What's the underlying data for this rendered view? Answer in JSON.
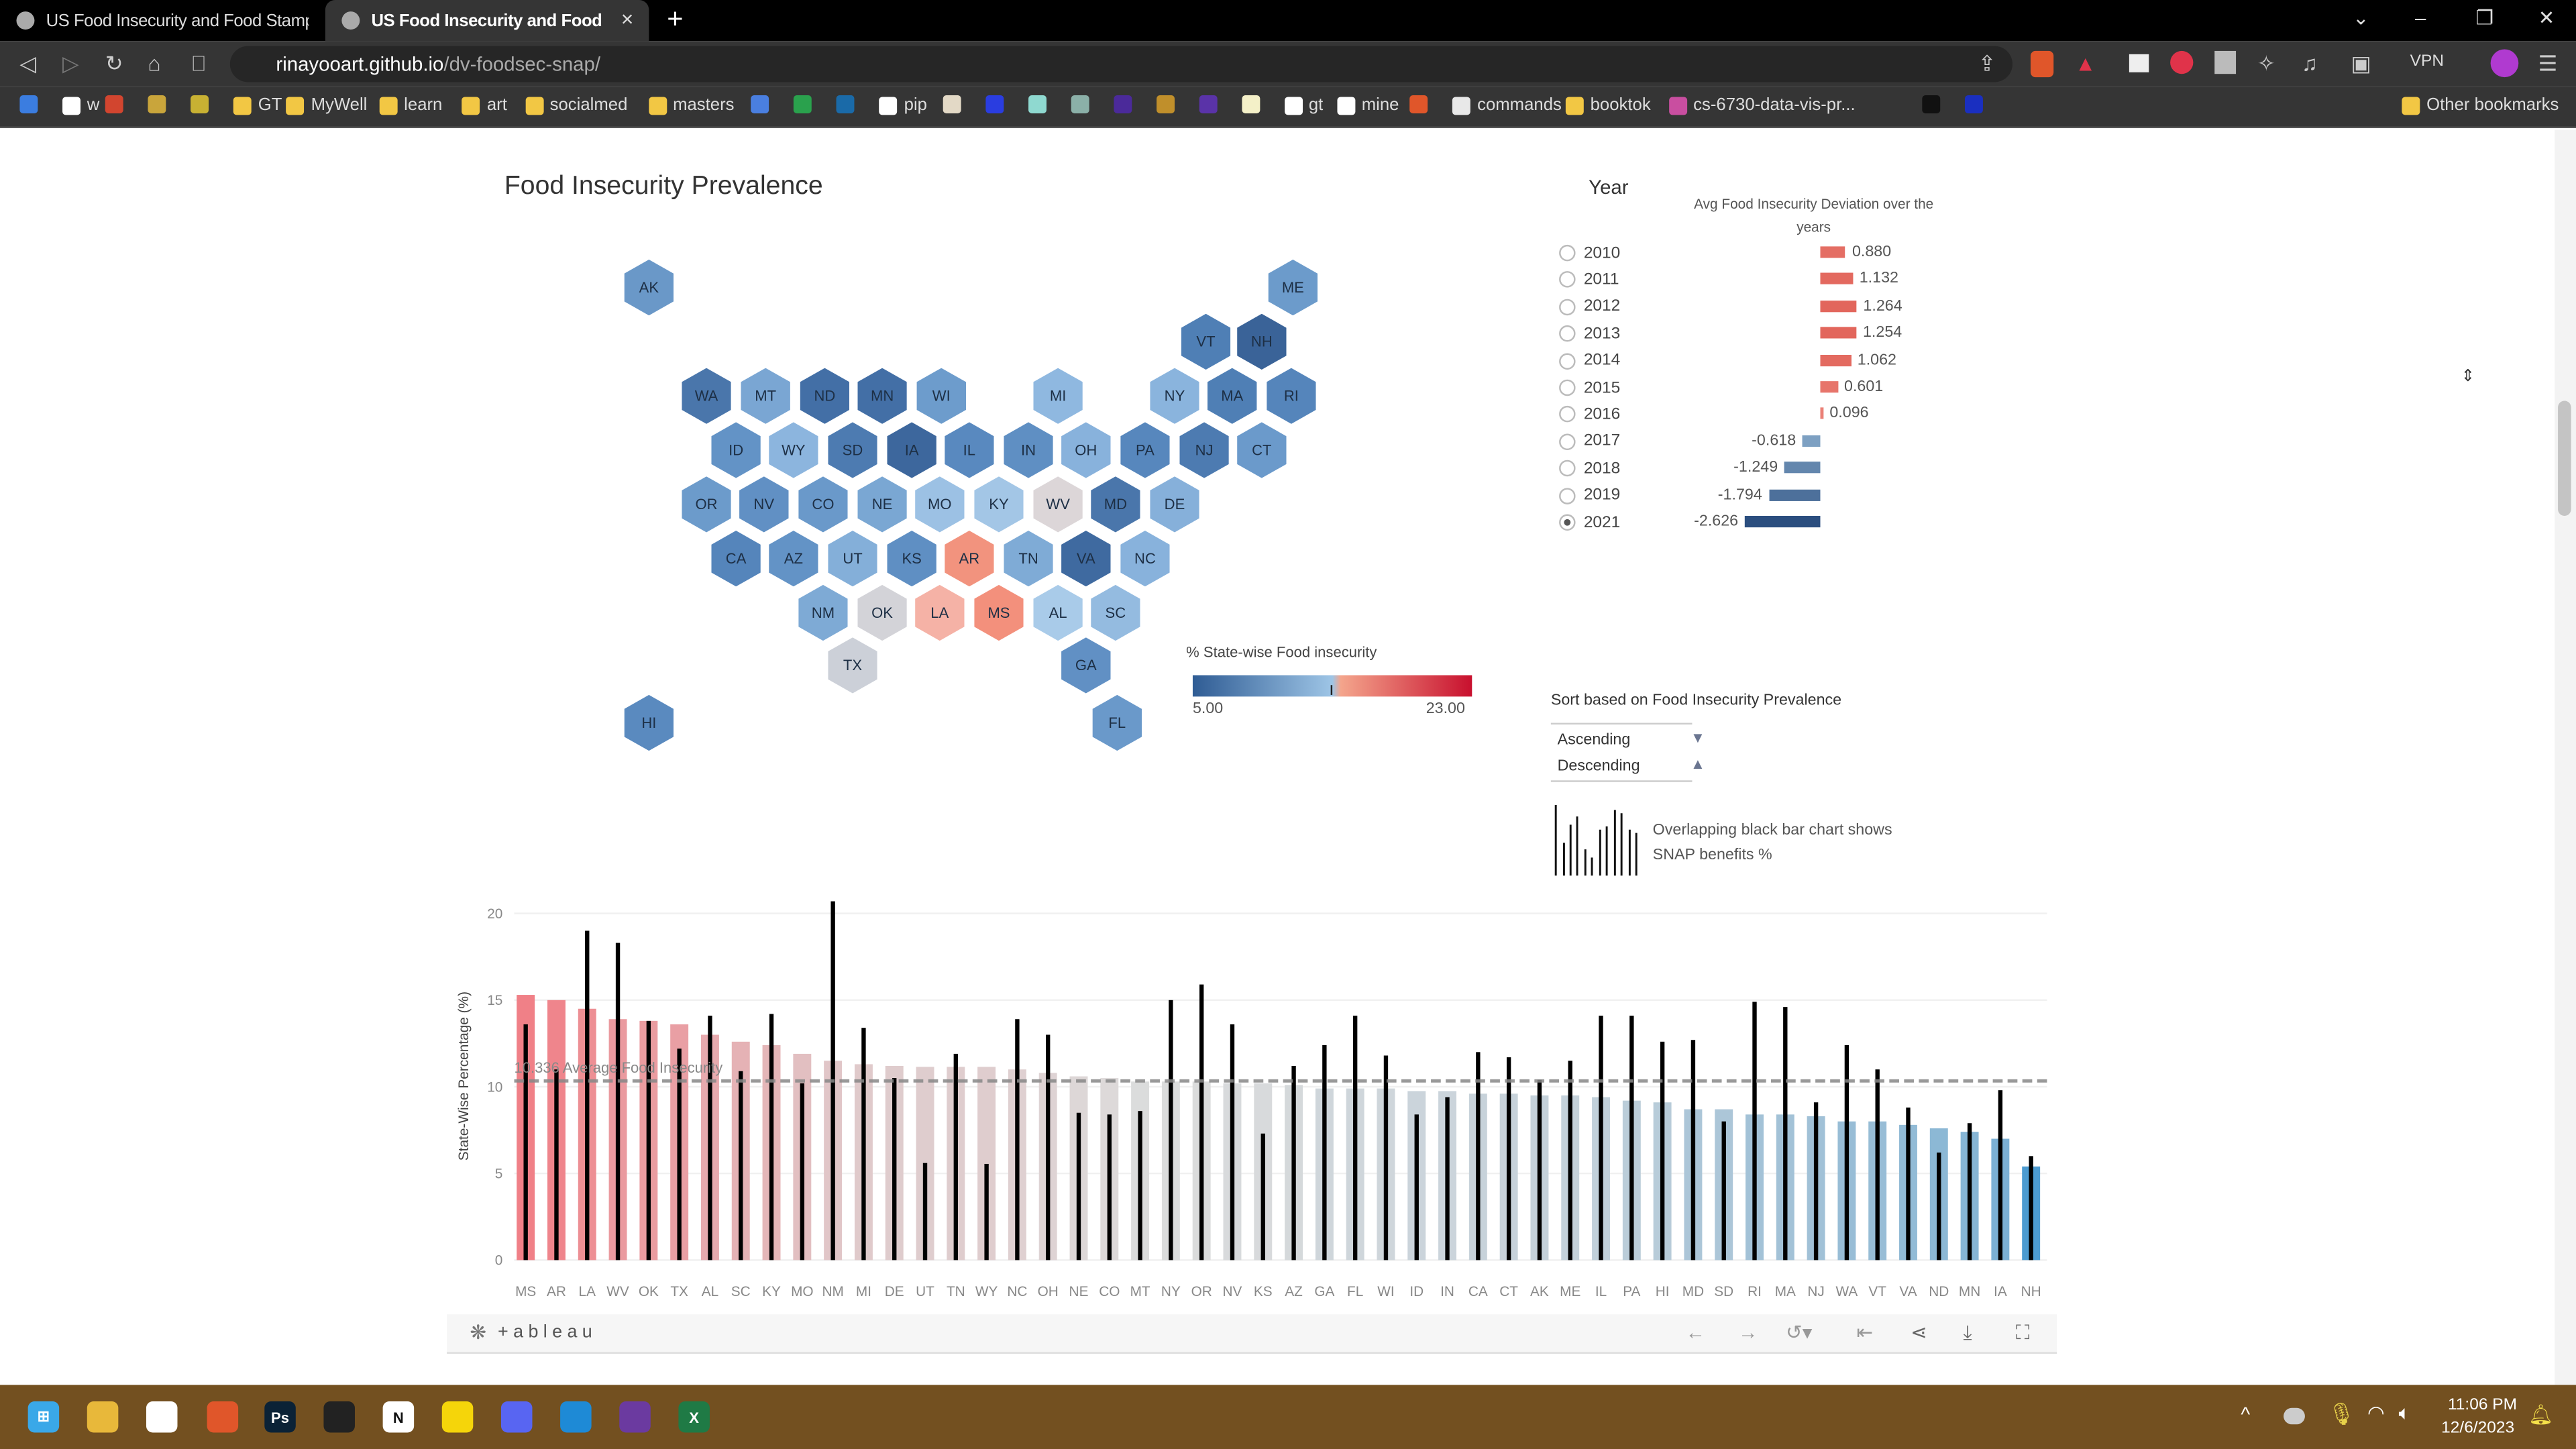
{
  "browser": {
    "tabs": [
      {
        "title": "US Food Insecurity and Food Stamps",
        "active": false
      },
      {
        "title": "US Food Insecurity and Food Sta",
        "active": true
      }
    ],
    "new_tab": "+",
    "close_tab": "×",
    "url_host": "rinayooart.github.io",
    "url_path": "/dv-foodsec-snap/",
    "vpn_label": "VPN",
    "bookmarks": [
      {
        "label": "",
        "color": "#3b7de0"
      },
      {
        "label": "w",
        "color": "#ffffff"
      },
      {
        "label": "",
        "color": "#d2452f"
      },
      {
        "label": "",
        "color": "#c9a53b"
      },
      {
        "label": "",
        "color": "#c8b133"
      },
      {
        "label": "GT",
        "color": "#f2c744"
      },
      {
        "label": "MyWell",
        "color": "#f2c744"
      },
      {
        "label": "learn",
        "color": "#f2c744"
      },
      {
        "label": "art",
        "color": "#f2c744"
      },
      {
        "label": "socialmed",
        "color": "#f2c744"
      },
      {
        "label": "masters",
        "color": "#f2c744"
      },
      {
        "label": "",
        "color": "#4a7fe0"
      },
      {
        "label": "",
        "color": "#2aa14d"
      },
      {
        "label": "",
        "color": "#1a6aa8"
      },
      {
        "label": "pip",
        "color": "#ffffff"
      },
      {
        "label": "",
        "color": "#e3d9c6"
      },
      {
        "label": "",
        "color": "#2a3de0"
      },
      {
        "label": "",
        "color": "#8fd9d0"
      },
      {
        "label": "",
        "color": "#8bb0a8"
      },
      {
        "label": "",
        "color": "#4b2a9a"
      },
      {
        "label": "",
        "color": "#c08f2b"
      },
      {
        "label": "",
        "color": "#5a33a8"
      },
      {
        "label": "",
        "color": "#f4f0c8"
      },
      {
        "label": "gt",
        "color": "#ffffff"
      },
      {
        "label": "mine",
        "color": "#ffffff"
      },
      {
        "label": "",
        "color": "#e0562a"
      },
      {
        "label": "commands",
        "color": "#e8e8e8"
      },
      {
        "label": "booktok",
        "color": "#f2c744"
      },
      {
        "label": "cs-6730-data-vis-pr...",
        "color": "#c94ea0"
      },
      {
        "label": "",
        "color": "#111111"
      },
      {
        "label": "",
        "color": "#1a2fc0"
      }
    ],
    "other_bookmarks": "Other bookmarks"
  },
  "dashboard": {
    "map_title": "Food Insecurity Prevalence",
    "states": [
      {
        "code": "AK",
        "color": "#6a98c8"
      },
      {
        "code": "ME",
        "color": "#6c9bcb"
      },
      {
        "code": "VT",
        "color": "#4f7fb5"
      },
      {
        "code": "NH",
        "color": "#3a6398"
      },
      {
        "code": "WA",
        "color": "#4a76ab"
      },
      {
        "code": "MT",
        "color": "#7aa6d3"
      },
      {
        "code": "ND",
        "color": "#436fa6"
      },
      {
        "code": "MN",
        "color": "#436fa6"
      },
      {
        "code": "WI",
        "color": "#6d9ccc"
      },
      {
        "code": "MI",
        "color": "#8fb8e0"
      },
      {
        "code": "NY",
        "color": "#8ab4dd"
      },
      {
        "code": "MA",
        "color": "#4f7fb5"
      },
      {
        "code": "RI",
        "color": "#5585bb"
      },
      {
        "code": "ID",
        "color": "#6393c6"
      },
      {
        "code": "WY",
        "color": "#8cb5de"
      },
      {
        "code": "SD",
        "color": "#4d7bb1"
      },
      {
        "code": "IA",
        "color": "#3d679d"
      },
      {
        "code": "IL",
        "color": "#5989bf"
      },
      {
        "code": "IN",
        "color": "#5f8fc3"
      },
      {
        "code": "OH",
        "color": "#88b2dc"
      },
      {
        "code": "PA",
        "color": "#5787bd"
      },
      {
        "code": "NJ",
        "color": "#4d7bb1"
      },
      {
        "code": "CT",
        "color": "#6b9acb"
      },
      {
        "code": "OR",
        "color": "#6c9bcb"
      },
      {
        "code": "NV",
        "color": "#6190c4"
      },
      {
        "code": "CO",
        "color": "#6a99ca"
      },
      {
        "code": "NE",
        "color": "#7aa7d3"
      },
      {
        "code": "MO",
        "color": "#9cc1e4"
      },
      {
        "code": "KY",
        "color": "#a3c6e6"
      },
      {
        "code": "WV",
        "color": "#dcd6d8"
      },
      {
        "code": "MD",
        "color": "#4a76ab"
      },
      {
        "code": "DE",
        "color": "#86b0da"
      },
      {
        "code": "CA",
        "color": "#5585bb"
      },
      {
        "code": "AZ",
        "color": "#6393c6"
      },
      {
        "code": "UT",
        "color": "#84afd9"
      },
      {
        "code": "KS",
        "color": "#5f8fc3"
      },
      {
        "code": "AR",
        "color": "#f2937e"
      },
      {
        "code": "TN",
        "color": "#7fabd6"
      },
      {
        "code": "VA",
        "color": "#3f6aa0"
      },
      {
        "code": "NC",
        "color": "#88b2dc"
      },
      {
        "code": "NM",
        "color": "#7eaad5"
      },
      {
        "code": "OK",
        "color": "#d3d3d8"
      },
      {
        "code": "LA",
        "color": "#f5b2a6"
      },
      {
        "code": "MS",
        "color": "#f3907c"
      },
      {
        "code": "AL",
        "color": "#a9cbe9"
      },
      {
        "code": "SC",
        "color": "#94bbe0"
      },
      {
        "code": "TX",
        "color": "#ccd0d8"
      },
      {
        "code": "GA",
        "color": "#6190c4"
      },
      {
        "code": "HI",
        "color": "#5a8abf"
      },
      {
        "code": "FL",
        "color": "#6a99ca"
      }
    ],
    "color_legend": {
      "title": "% State-wise Food insecurity",
      "min": "5.00",
      "max": "23.00",
      "colors": [
        "#2f5c94",
        "#9ec5e6",
        "#f4a58c",
        "#c8102e"
      ]
    },
    "year_filter": {
      "title": "Year",
      "chart_title": "Avg Food Insecurity Deviation over the years",
      "selected": "2021",
      "years": [
        {
          "year": "2010",
          "value": 0.88,
          "label": "0.880"
        },
        {
          "year": "2011",
          "value": 1.132,
          "label": "1.132"
        },
        {
          "year": "2012",
          "value": 1.264,
          "label": "1.264"
        },
        {
          "year": "2013",
          "value": 1.254,
          "label": "1.254"
        },
        {
          "year": "2014",
          "value": 1.062,
          "label": "1.062"
        },
        {
          "year": "2015",
          "value": 0.601,
          "label": "0.601"
        },
        {
          "year": "2016",
          "value": 0.096,
          "label": "0.096"
        },
        {
          "year": "2017",
          "value": -0.618,
          "label": "-0.618"
        },
        {
          "year": "2018",
          "value": -1.249,
          "label": "-1.249"
        },
        {
          "year": "2019",
          "value": -1.794,
          "label": "-1.794"
        },
        {
          "year": "2021",
          "value": -2.626,
          "label": "-2.626"
        }
      ]
    },
    "sort": {
      "title": "Sort based on Food Insecurity Prevalence",
      "options": [
        {
          "label": "Ascending",
          "glyph": "▼"
        },
        {
          "label": "Descending",
          "glyph": "▲"
        }
      ]
    },
    "snap_note": "Overlapping black bar chart shows SNAP benefits %"
  },
  "chart_data": {
    "type": "bar",
    "ylabel": "State-Wise Percentage (%)",
    "ylim": [
      0,
      21
    ],
    "yticks": [
      0,
      5,
      10,
      15,
      20
    ],
    "reference_line": {
      "value": 10.336,
      "label": "10.336 Average Food Insecurity"
    },
    "categories": [
      "MS",
      "AR",
      "LA",
      "WV",
      "OK",
      "TX",
      "AL",
      "SC",
      "KY",
      "MO",
      "NM",
      "MI",
      "DE",
      "UT",
      "TN",
      "WY",
      "NC",
      "OH",
      "NE",
      "CO",
      "MT",
      "NY",
      "OR",
      "NV",
      "KS",
      "AZ",
      "GA",
      "FL",
      "WI",
      "ID",
      "IN",
      "CA",
      "CT",
      "AK",
      "ME",
      "IL",
      "PA",
      "HI",
      "MD",
      "SD",
      "RI",
      "MA",
      "NJ",
      "WA",
      "VT",
      "VA",
      "ND",
      "MN",
      "IA",
      "NH"
    ],
    "series": [
      {
        "values": [
          15.3,
          15.0,
          14.5,
          13.9,
          13.8,
          13.6,
          13.0,
          12.6,
          12.4,
          11.9,
          11.5,
          11.3,
          11.2,
          11.15,
          11.15,
          11.15,
          11.0,
          10.8,
          10.6,
          10.5,
          10.3,
          10.3,
          10.3,
          10.2,
          10.2,
          10.1,
          9.9,
          9.9,
          9.9,
          9.75,
          9.75,
          9.6,
          9.6,
          9.5,
          9.5,
          9.4,
          9.2,
          9.1,
          8.7,
          8.7,
          8.4,
          8.4,
          8.3,
          8.0,
          8.0,
          7.8,
          7.6,
          7.4,
          7.0,
          5.4
        ]
      },
      {
        "values": [
          13.6,
          11.0,
          19.0,
          18.3,
          13.8,
          12.2,
          14.1,
          10.9,
          14.2,
          10.2,
          20.7,
          13.4,
          10.5,
          5.6,
          11.9,
          5.55,
          13.9,
          13.0,
          8.5,
          8.4,
          8.6,
          15.0,
          15.9,
          13.6,
          7.3,
          11.2,
          12.4,
          14.1,
          11.8,
          8.4,
          9.4,
          12.0,
          11.7,
          10.4,
          11.5,
          14.1,
          14.1,
          12.6,
          12.7,
          8.0,
          14.9,
          14.6,
          9.1,
          12.4,
          11.0,
          8.8,
          6.2,
          7.9,
          9.8,
          6.0
        ]
      }
    ],
    "colors": {
      "high": "#f07f86",
      "mid": "#dcdcdc",
      "low": "#4a9ad0",
      "snap": "#000000"
    },
    "grid": true
  },
  "tableau": {
    "logo": "+ableau"
  },
  "taskbar": {
    "apps": [
      {
        "name": "start",
        "color": "#3aa8e8",
        "glyph": "⊞"
      },
      {
        "name": "file-explorer",
        "color": "#e8b83a",
        "glyph": ""
      },
      {
        "name": "app",
        "color": "#ffffff",
        "glyph": ""
      },
      {
        "name": "brave",
        "color": "#e0562a",
        "glyph": ""
      },
      {
        "name": "photoshop",
        "color": "#0b2236",
        "glyph": "Ps"
      },
      {
        "name": "obs",
        "color": "#222222",
        "glyph": ""
      },
      {
        "name": "notion",
        "color": "#ffffff",
        "glyph": "N"
      },
      {
        "name": "sticky-notes",
        "color": "#f5d50a",
        "glyph": ""
      },
      {
        "name": "discord",
        "color": "#5865f2",
        "glyph": ""
      },
      {
        "name": "vscode",
        "color": "#1e8ad6",
        "glyph": ""
      },
      {
        "name": "github-desktop",
        "color": "#6b3aa0",
        "glyph": ""
      },
      {
        "name": "excel",
        "color": "#1f7a45",
        "glyph": "X"
      }
    ],
    "time": "11:06 PM",
    "date": "12/6/2023"
  }
}
